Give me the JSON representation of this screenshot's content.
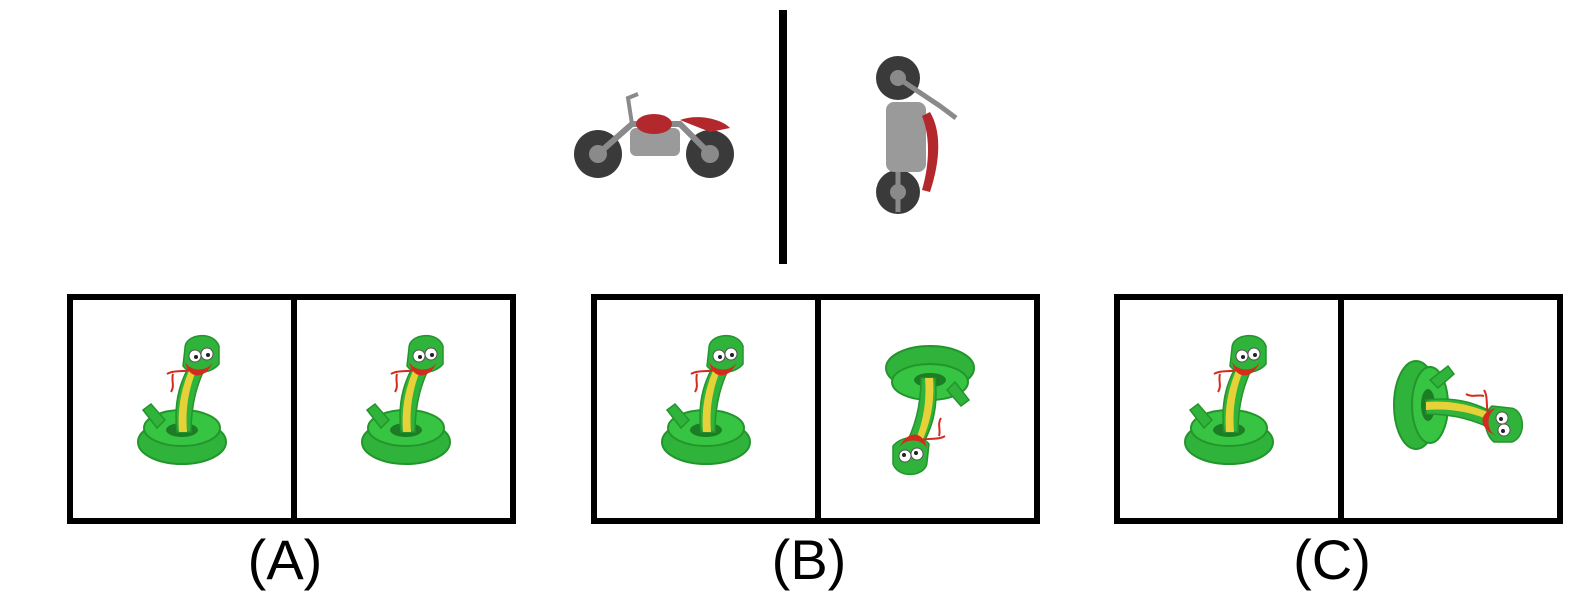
{
  "prompt_image": {
    "left_icon": "motorcycle-side-view",
    "right_icon": "motorcycle-rotated-view"
  },
  "options": [
    {
      "label": "(A)",
      "left_icon": "snake-upright",
      "right_icon": "snake-upright"
    },
    {
      "label": "(B)",
      "left_icon": "snake-upright",
      "right_icon": "snake-upside-down"
    },
    {
      "label": "(C)",
      "left_icon": "snake-upright",
      "right_icon": "snake-rotated-sideways"
    }
  ],
  "colors": {
    "snake_green": "#2fb33a",
    "snake_yellow": "#e6d238",
    "snake_red": "#d42b1f",
    "moto_gray": "#8a8a8a",
    "moto_red": "#b3282d",
    "tire": "#3a3a3a"
  }
}
